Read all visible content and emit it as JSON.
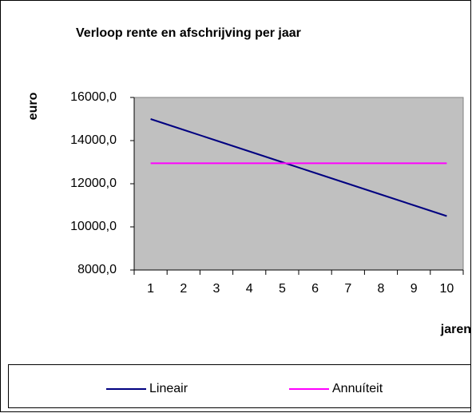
{
  "chart_data": {
    "type": "line",
    "title": "Verloop rente en afschrijving per jaar",
    "y_label": "euro",
    "x_label": "jaren",
    "categories": [
      "1",
      "2",
      "3",
      "4",
      "5",
      "6",
      "7",
      "8",
      "9",
      "10"
    ],
    "series": [
      {
        "name": "Lineair",
        "color": "#000080",
        "values": [
          15000,
          14500,
          14000,
          13500,
          13000,
          12500,
          12000,
          11500,
          11000,
          10500
        ]
      },
      {
        "name": "Annuíteit",
        "color": "#ff00ff",
        "values": [
          12950,
          12950,
          12950,
          12950,
          12950,
          12950,
          12950,
          12950,
          12950,
          12950
        ]
      }
    ],
    "ylim": [
      8000,
      16000
    ],
    "yticks": [
      {
        "value": 8000,
        "label": "8000,0"
      },
      {
        "value": 10000,
        "label": "10000,0"
      },
      {
        "value": 12000,
        "label": "12000,0"
      },
      {
        "value": 14000,
        "label": "14000,0"
      },
      {
        "value": 16000,
        "label": "16000,0"
      }
    ],
    "legend": "bottom",
    "plot_background": "#c0c0c0"
  }
}
